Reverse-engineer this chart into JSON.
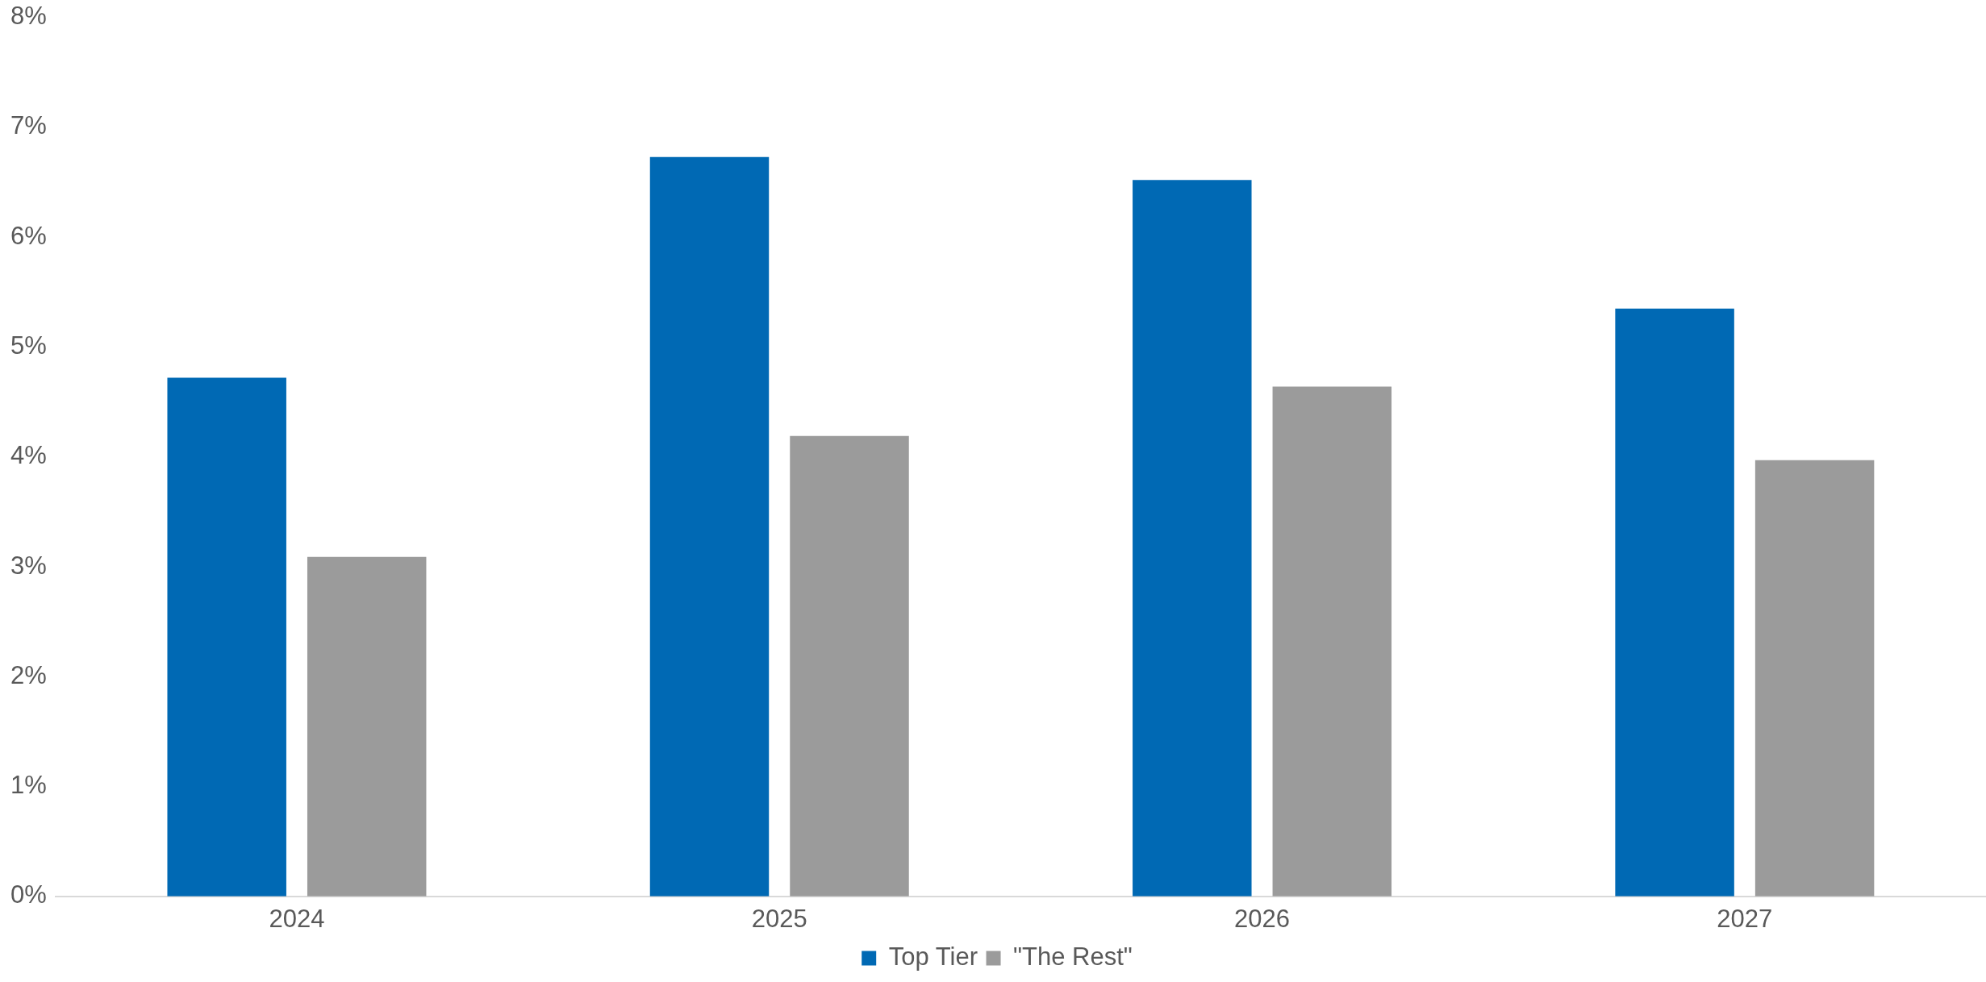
{
  "chart_data": {
    "type": "bar",
    "categories": [
      "2024",
      "2025",
      "2026",
      "2027"
    ],
    "series": [
      {
        "name": "Top Tier",
        "color": "#0069b4",
        "values": [
          4.72,
          6.73,
          6.52,
          5.35
        ]
      },
      {
        "name": "\"The Rest\"",
        "color": "#9b9b9b",
        "values": [
          3.09,
          4.19,
          4.64,
          3.97
        ]
      }
    ],
    "ylim": [
      0,
      8
    ],
    "yticks": [
      {
        "value": 0,
        "label": "0%"
      },
      {
        "value": 1,
        "label": "1%"
      },
      {
        "value": 2,
        "label": "2%"
      },
      {
        "value": 3,
        "label": "3%"
      },
      {
        "value": 4,
        "label": "4%"
      },
      {
        "value": 5,
        "label": "5%"
      },
      {
        "value": 6,
        "label": "6%"
      },
      {
        "value": 7,
        "label": "7%"
      },
      {
        "value": 8,
        "label": "8%"
      }
    ],
    "grid": false,
    "legend": "bottom"
  }
}
